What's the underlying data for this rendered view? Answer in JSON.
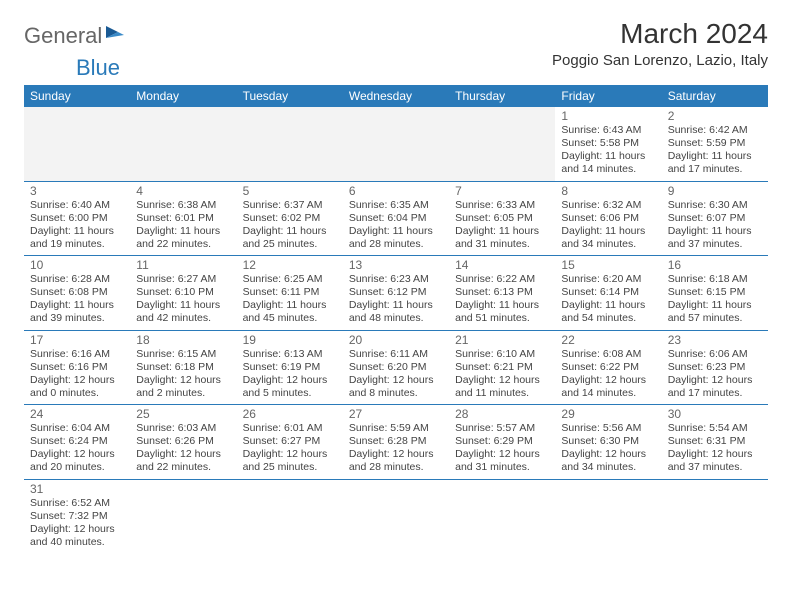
{
  "logo": {
    "text1": "General",
    "text2": "Blue"
  },
  "colors": {
    "header_bg": "#2a7ab9",
    "header_text": "#ffffff",
    "border": "#2a7ab9",
    "empty_bg": "#f3f3f3",
    "text": "#444444",
    "daynum": "#666666"
  },
  "title": "March 2024",
  "location": "Poggio San Lorenzo, Lazio, Italy",
  "weekdays": [
    "Sunday",
    "Monday",
    "Tuesday",
    "Wednesday",
    "Thursday",
    "Friday",
    "Saturday"
  ],
  "weeks": [
    [
      null,
      null,
      null,
      null,
      null,
      {
        "day": "1",
        "sunrise": "Sunrise: 6:43 AM",
        "sunset": "Sunset: 5:58 PM",
        "daylight": "Daylight: 11 hours and 14 minutes."
      },
      {
        "day": "2",
        "sunrise": "Sunrise: 6:42 AM",
        "sunset": "Sunset: 5:59 PM",
        "daylight": "Daylight: 11 hours and 17 minutes."
      }
    ],
    [
      {
        "day": "3",
        "sunrise": "Sunrise: 6:40 AM",
        "sunset": "Sunset: 6:00 PM",
        "daylight": "Daylight: 11 hours and 19 minutes."
      },
      {
        "day": "4",
        "sunrise": "Sunrise: 6:38 AM",
        "sunset": "Sunset: 6:01 PM",
        "daylight": "Daylight: 11 hours and 22 minutes."
      },
      {
        "day": "5",
        "sunrise": "Sunrise: 6:37 AM",
        "sunset": "Sunset: 6:02 PM",
        "daylight": "Daylight: 11 hours and 25 minutes."
      },
      {
        "day": "6",
        "sunrise": "Sunrise: 6:35 AM",
        "sunset": "Sunset: 6:04 PM",
        "daylight": "Daylight: 11 hours and 28 minutes."
      },
      {
        "day": "7",
        "sunrise": "Sunrise: 6:33 AM",
        "sunset": "Sunset: 6:05 PM",
        "daylight": "Daylight: 11 hours and 31 minutes."
      },
      {
        "day": "8",
        "sunrise": "Sunrise: 6:32 AM",
        "sunset": "Sunset: 6:06 PM",
        "daylight": "Daylight: 11 hours and 34 minutes."
      },
      {
        "day": "9",
        "sunrise": "Sunrise: 6:30 AM",
        "sunset": "Sunset: 6:07 PM",
        "daylight": "Daylight: 11 hours and 37 minutes."
      }
    ],
    [
      {
        "day": "10",
        "sunrise": "Sunrise: 6:28 AM",
        "sunset": "Sunset: 6:08 PM",
        "daylight": "Daylight: 11 hours and 39 minutes."
      },
      {
        "day": "11",
        "sunrise": "Sunrise: 6:27 AM",
        "sunset": "Sunset: 6:10 PM",
        "daylight": "Daylight: 11 hours and 42 minutes."
      },
      {
        "day": "12",
        "sunrise": "Sunrise: 6:25 AM",
        "sunset": "Sunset: 6:11 PM",
        "daylight": "Daylight: 11 hours and 45 minutes."
      },
      {
        "day": "13",
        "sunrise": "Sunrise: 6:23 AM",
        "sunset": "Sunset: 6:12 PM",
        "daylight": "Daylight: 11 hours and 48 minutes."
      },
      {
        "day": "14",
        "sunrise": "Sunrise: 6:22 AM",
        "sunset": "Sunset: 6:13 PM",
        "daylight": "Daylight: 11 hours and 51 minutes."
      },
      {
        "day": "15",
        "sunrise": "Sunrise: 6:20 AM",
        "sunset": "Sunset: 6:14 PM",
        "daylight": "Daylight: 11 hours and 54 minutes."
      },
      {
        "day": "16",
        "sunrise": "Sunrise: 6:18 AM",
        "sunset": "Sunset: 6:15 PM",
        "daylight": "Daylight: 11 hours and 57 minutes."
      }
    ],
    [
      {
        "day": "17",
        "sunrise": "Sunrise: 6:16 AM",
        "sunset": "Sunset: 6:16 PM",
        "daylight": "Daylight: 12 hours and 0 minutes."
      },
      {
        "day": "18",
        "sunrise": "Sunrise: 6:15 AM",
        "sunset": "Sunset: 6:18 PM",
        "daylight": "Daylight: 12 hours and 2 minutes."
      },
      {
        "day": "19",
        "sunrise": "Sunrise: 6:13 AM",
        "sunset": "Sunset: 6:19 PM",
        "daylight": "Daylight: 12 hours and 5 minutes."
      },
      {
        "day": "20",
        "sunrise": "Sunrise: 6:11 AM",
        "sunset": "Sunset: 6:20 PM",
        "daylight": "Daylight: 12 hours and 8 minutes."
      },
      {
        "day": "21",
        "sunrise": "Sunrise: 6:10 AM",
        "sunset": "Sunset: 6:21 PM",
        "daylight": "Daylight: 12 hours and 11 minutes."
      },
      {
        "day": "22",
        "sunrise": "Sunrise: 6:08 AM",
        "sunset": "Sunset: 6:22 PM",
        "daylight": "Daylight: 12 hours and 14 minutes."
      },
      {
        "day": "23",
        "sunrise": "Sunrise: 6:06 AM",
        "sunset": "Sunset: 6:23 PM",
        "daylight": "Daylight: 12 hours and 17 minutes."
      }
    ],
    [
      {
        "day": "24",
        "sunrise": "Sunrise: 6:04 AM",
        "sunset": "Sunset: 6:24 PM",
        "daylight": "Daylight: 12 hours and 20 minutes."
      },
      {
        "day": "25",
        "sunrise": "Sunrise: 6:03 AM",
        "sunset": "Sunset: 6:26 PM",
        "daylight": "Daylight: 12 hours and 22 minutes."
      },
      {
        "day": "26",
        "sunrise": "Sunrise: 6:01 AM",
        "sunset": "Sunset: 6:27 PM",
        "daylight": "Daylight: 12 hours and 25 minutes."
      },
      {
        "day": "27",
        "sunrise": "Sunrise: 5:59 AM",
        "sunset": "Sunset: 6:28 PM",
        "daylight": "Daylight: 12 hours and 28 minutes."
      },
      {
        "day": "28",
        "sunrise": "Sunrise: 5:57 AM",
        "sunset": "Sunset: 6:29 PM",
        "daylight": "Daylight: 12 hours and 31 minutes."
      },
      {
        "day": "29",
        "sunrise": "Sunrise: 5:56 AM",
        "sunset": "Sunset: 6:30 PM",
        "daylight": "Daylight: 12 hours and 34 minutes."
      },
      {
        "day": "30",
        "sunrise": "Sunrise: 5:54 AM",
        "sunset": "Sunset: 6:31 PM",
        "daylight": "Daylight: 12 hours and 37 minutes."
      }
    ],
    [
      {
        "day": "31",
        "sunrise": "Sunrise: 6:52 AM",
        "sunset": "Sunset: 7:32 PM",
        "daylight": "Daylight: 12 hours and 40 minutes."
      },
      null,
      null,
      null,
      null,
      null,
      null
    ]
  ]
}
